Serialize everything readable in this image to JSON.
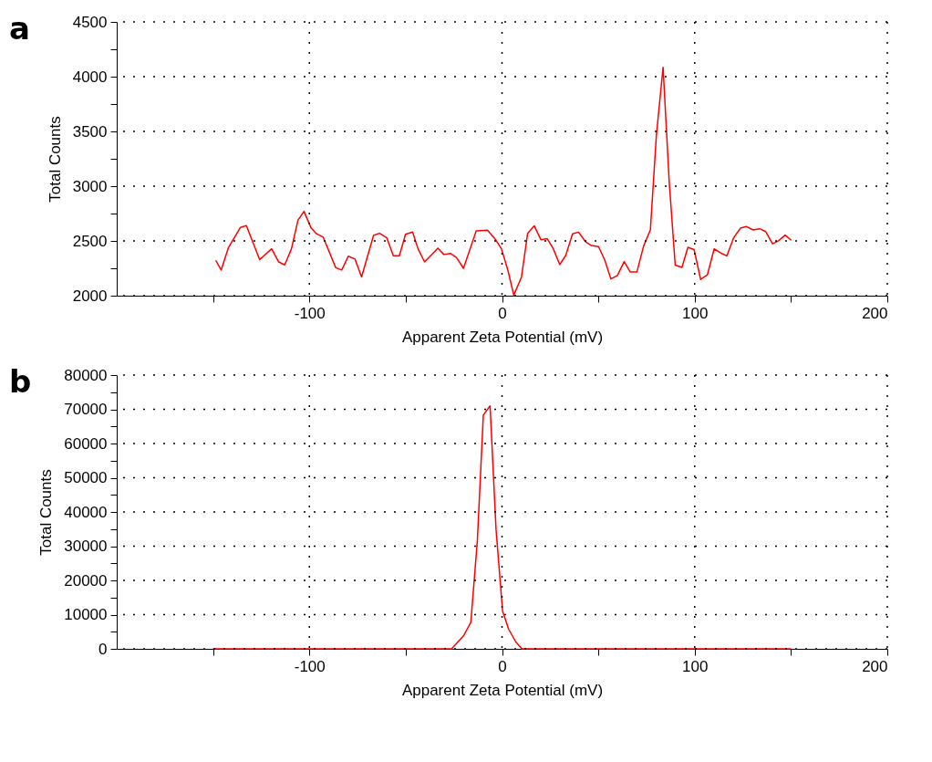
{
  "chart_data": [
    {
      "type": "line",
      "annotations": [
        "a"
      ],
      "xlabel": "Apparent Zeta Potential (mV)",
      "ylabel": "Total Counts",
      "xlim": [
        -200,
        200
      ],
      "ylim": [
        2000,
        4500
      ],
      "xticks": [
        {
          "value": -150,
          "label": null
        },
        -100,
        {
          "value": -50,
          "label": null
        },
        0,
        {
          "value": 50,
          "label": null
        },
        100,
        {
          "value": 150,
          "label": null
        },
        200
      ],
      "yticks": [
        2000,
        {
          "value": 2250,
          "label": null
        },
        2500,
        {
          "value": 2750,
          "label": null
        },
        3000,
        {
          "value": 3250,
          "label": null
        },
        3500,
        {
          "value": 3750,
          "label": null
        },
        4000,
        {
          "value": 4250,
          "label": null
        },
        4500
      ],
      "grid": true,
      "marker": "none",
      "line_style": "solid",
      "series": [
        {
          "color": "#ff0000",
          "x": [
            -148.6,
            -145.8,
            -142.0,
            -135.8,
            -132.7,
            -125.8,
            -119.6,
            -115.9,
            -112.8,
            -109.3,
            -105.9,
            -102.8,
            -99.1,
            -96.3,
            -92.8,
            -86.3,
            -83.2,
            -79.8,
            -76.3,
            -72.9,
            -66.7,
            -63.6,
            -59.8,
            -56.4,
            -53.3,
            -50.1,
            -46.4,
            -43.6,
            -40.2,
            -33.3,
            -30.2,
            -26.8,
            -23.7,
            -20.0,
            -13.4,
            -7.5,
            -3.4,
            -0.3,
            3.1,
            6.1,
            10.1,
            13.3,
            16.7,
            20.2,
            23.4,
            26.5,
            30.0,
            33.1,
            36.6,
            39.7,
            43.5,
            46.4,
            50.1,
            53.3,
            56.5,
            59.9,
            63.4,
            66.6,
            70.0,
            73.5,
            77.0,
            80.1,
            83.6,
            86.8,
            89.9,
            93.4,
            96.5,
            99.7,
            103.1,
            106.6,
            110.1,
            113.5,
            116.7,
            120.2,
            123.7,
            126.8,
            130.3,
            133.7,
            136.9,
            140.4,
            143.5,
            147.0,
            150.1
          ],
          "values": [
            2323,
            2234,
            2439,
            2623,
            2639,
            2329,
            2428,
            2308,
            2281,
            2428,
            2691,
            2770,
            2618,
            2565,
            2534,
            2255,
            2234,
            2360,
            2334,
            2171,
            2550,
            2570,
            2528,
            2365,
            2365,
            2560,
            2581,
            2428,
            2308,
            2434,
            2376,
            2386,
            2349,
            2250,
            2591,
            2597,
            2513,
            2428,
            2229,
            2005,
            2169,
            2569,
            2638,
            2511,
            2521,
            2432,
            2284,
            2369,
            2564,
            2580,
            2490,
            2458,
            2448,
            2327,
            2153,
            2185,
            2311,
            2216,
            2216,
            2453,
            2600,
            3458,
            4085,
            3037,
            2279,
            2258,
            2442,
            2421,
            2148,
            2190,
            2427,
            2390,
            2363,
            2527,
            2616,
            2632,
            2600,
            2611,
            2585,
            2474,
            2501,
            2553,
            2506
          ]
        }
      ]
    },
    {
      "type": "line",
      "annotations": [
        "b"
      ],
      "xlabel": "Apparent Zeta Potential (mV)",
      "ylabel": "Total Counts",
      "xlim": [
        -200,
        200
      ],
      "ylim": [
        0,
        80000
      ],
      "xticks": [
        {
          "value": -150,
          "label": null
        },
        -100,
        {
          "value": -50,
          "label": null
        },
        0,
        {
          "value": 50,
          "label": null
        },
        100,
        {
          "value": 150,
          "label": null
        },
        200
      ],
      "yticks": [
        0,
        {
          "value": 5000,
          "label": null
        },
        10000,
        {
          "value": 15000,
          "label": null
        },
        20000,
        {
          "value": 25000,
          "label": null
        },
        30000,
        {
          "value": 35000,
          "label": null
        },
        40000,
        {
          "value": 45000,
          "label": null
        },
        50000,
        {
          "value": 55000,
          "label": null
        },
        60000,
        {
          "value": 65000,
          "label": null
        },
        70000,
        {
          "value": 75000,
          "label": null
        },
        80000
      ],
      "grid": true,
      "marker": "none",
      "line_style": "solid",
      "series": [
        {
          "color": "#ff0000",
          "x": [
            -150,
            -26.2,
            -20.0,
            -16.2,
            -12.8,
            -9.7,
            -6.2,
            -3.1,
            0.3,
            3.4,
            7.2,
            10.3,
            150
          ],
          "values": [
            0,
            0,
            3800,
            7700,
            31600,
            68300,
            71000,
            34900,
            11000,
            5800,
            2000,
            0,
            0
          ]
        }
      ]
    }
  ]
}
